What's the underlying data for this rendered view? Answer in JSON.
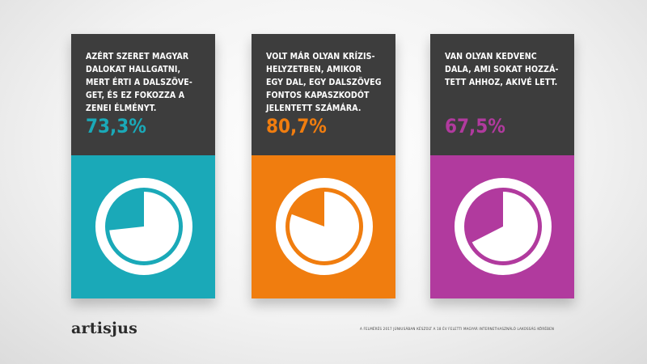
{
  "chart_data": {
    "type": "pie",
    "panels": [
      {
        "text": "AZÉRT SZERET MAGYAR\nDALOKAT HALLGATNI,\nMERT ÉRTI A DALSZÖVE-\nGET,  ÉS EZ FOKOZZA A\nZENEI ÉLMÉNYT.",
        "value_label": "73,3%",
        "value": 73.3,
        "color": "#1aa9b8"
      },
      {
        "text": "VOLT MÁR OLYAN KRÍZIS-\nHELYZETBEN, AMIKOR\nEGY DAL, EGY DALSZÖVEG\nFONTOS KAPASZKODÓT\nJELENTETT SZÁMÁRA.",
        "value_label": "80,7%",
        "value": 80.7,
        "color": "#f07d0f"
      },
      {
        "text": "VAN OLYAN KEDVENC\nDALA, AMI SOKAT HOZZÁ-\nTETT AHHOZ, AKIVÉ LETT.",
        "value_label": "67,5%",
        "value": 67.5,
        "color": "#b13a9e"
      }
    ]
  },
  "logo": "artisjus",
  "footnote": "A FELMÉRÉS 2017 JÚNIUSÁBAN KÉSZÜLT A 18 ÉV FELETTI MAGYAR INTERNETHASZNÁLÓ LAKOSSÁG KÖRÉBEN",
  "colors": {
    "panel_top": "#3d3d3d",
    "pie_fill": "#ffffff"
  }
}
